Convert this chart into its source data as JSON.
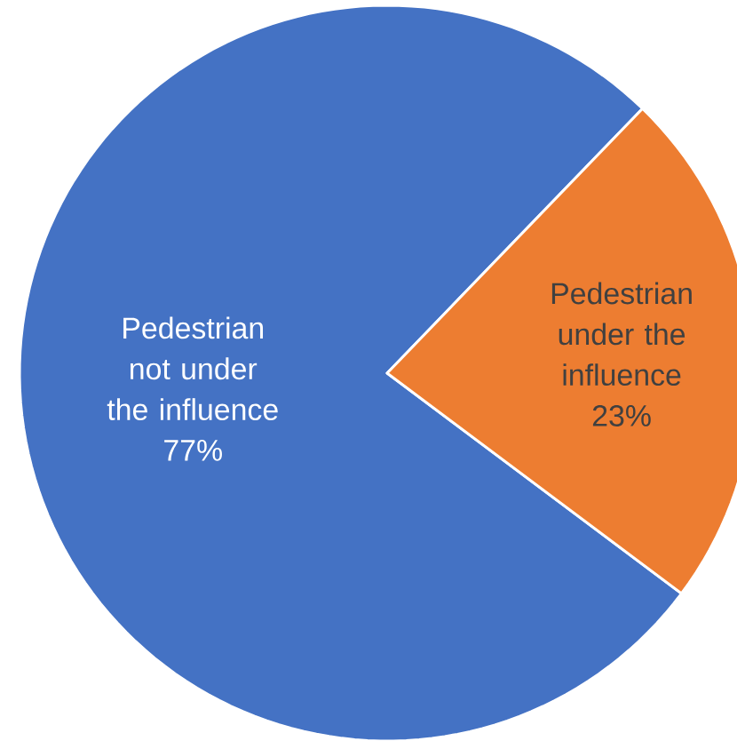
{
  "chart_data": {
    "type": "pie",
    "categories": [
      "Pedestrian not under the influence",
      "Pedestrian under the influence"
    ],
    "values": [
      77,
      23
    ],
    "value_labels": [
      "77%",
      "23%"
    ],
    "colors": [
      "#4472c4",
      "#ed7d31"
    ]
  }
}
